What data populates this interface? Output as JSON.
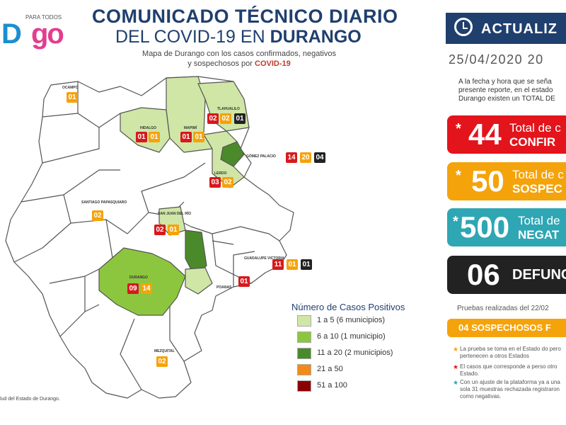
{
  "header": {
    "logo_small": "PARA TODOS",
    "logo_d": "D",
    "logo_go": "go",
    "title_line1": "COMUNICADO TÉCNICO DIARIO",
    "title_line2_pre": "DEL COVID-19 EN ",
    "title_line2_bold": "DURANGO",
    "subtitle_line1": "Mapa de Durango con los casos confirmados, negativos",
    "subtitle_line2_pre": "y sospechosos por ",
    "subtitle_line2_bold": "COVID-19"
  },
  "map": {
    "municipios": [
      {
        "name": "OCAMPO",
        "badges": [
          {
            "value": "01",
            "type": "suspected"
          }
        ]
      },
      {
        "name": "HIDALGO",
        "badges": [
          {
            "value": "01",
            "type": "confirmed"
          },
          {
            "value": "01",
            "type": "suspected"
          }
        ]
      },
      {
        "name": "MAPIMÍ",
        "badges": [
          {
            "value": "01",
            "type": "confirmed"
          },
          {
            "value": "01",
            "type": "suspected"
          }
        ]
      },
      {
        "name": "TLAHUALILO",
        "badges": [
          {
            "value": "02",
            "type": "confirmed"
          },
          {
            "value": "02",
            "type": "suspected"
          },
          {
            "value": "01",
            "type": "negative"
          }
        ]
      },
      {
        "name": "GÓMEZ PALACIO",
        "badges": [
          {
            "value": "14",
            "type": "confirmed"
          },
          {
            "value": "20",
            "type": "suspected"
          },
          {
            "value": "04",
            "type": "negative"
          }
        ]
      },
      {
        "name": "LERDO",
        "badges": [
          {
            "value": "03",
            "type": "confirmed"
          },
          {
            "value": "02",
            "type": "suspected"
          }
        ]
      },
      {
        "name": "SANTIAGO PAPASQUIARO",
        "badges": [
          {
            "value": "02",
            "type": "suspected"
          }
        ]
      },
      {
        "name": "SAN JUAN DEL RÍO",
        "badges": [
          {
            "value": "02",
            "type": "confirmed"
          },
          {
            "value": "01",
            "type": "suspected"
          }
        ]
      },
      {
        "name": "GUADALUPE VICTORIA",
        "badges": [
          {
            "value": "11",
            "type": "confirmed"
          },
          {
            "value": "01",
            "type": "suspected"
          },
          {
            "value": "01",
            "type": "negative"
          }
        ]
      },
      {
        "name": "POANAS",
        "badges": [
          {
            "value": "01",
            "type": "confirmed"
          }
        ]
      },
      {
        "name": "DURANGO",
        "badges": [
          {
            "value": "09",
            "type": "confirmed"
          },
          {
            "value": "14",
            "type": "suspected"
          }
        ]
      },
      {
        "name": "MEZQUITAL",
        "badges": [
          {
            "value": "02",
            "type": "suspected"
          }
        ]
      }
    ],
    "colors": {
      "light": "#cfe6a6",
      "medium": "#8cc63f",
      "dark": "#4b8a2b",
      "outline": "#555555",
      "white": "#ffffff"
    }
  },
  "legend": {
    "title": "Número de Casos Positivos",
    "items": [
      {
        "label": "1 a 5   (6 municipios)",
        "color": "#cfe6a6"
      },
      {
        "label": "6 a 10   (1 municipio)",
        "color": "#8cc63f"
      },
      {
        "label": "11 a 20   (2 municipios)",
        "color": "#4b8a2b"
      },
      {
        "label": "21 a 50",
        "color": "#f28a1a"
      },
      {
        "label": "51 a 100",
        "color": "#8b0000"
      }
    ]
  },
  "source": "lud del Estado de Durango.",
  "panel": {
    "update_label": "ACTUALIZ",
    "date": "25/04/2020  20",
    "intro": "A la fecha y hora que se seña presente reporte, en el estado Durango existen un TOTAL DE",
    "cards": [
      {
        "asterisk": "*",
        "number": "44",
        "line1": "Total de c",
        "line2": "CONFIR",
        "color": "#e3141b"
      },
      {
        "asterisk": "*",
        "number": "50",
        "line1": "Total de c",
        "line2": "SOSPEC",
        "color": "#f5a30b"
      },
      {
        "asterisk": "*",
        "number": "500",
        "line1": "Total de",
        "line2": "NEGAT",
        "color": "#2fa6b3"
      },
      {
        "asterisk": "",
        "number": "06",
        "line1": "",
        "line2": "DEFUNC",
        "color": "#222222"
      }
    ],
    "pruebas": "Pruebas realizadas del 22/02",
    "sospechosos_bar": "04 SOSPECHOSOS F",
    "notes": [
      {
        "star_color": "#f5a30b",
        "text": "La prueba se toma en el Estado do pero pertenecen a otros Estados"
      },
      {
        "star_color": "#d7191c",
        "text": "El casos que corresponde a perso otro Estado."
      },
      {
        "star_color": "#2fa6b3",
        "text": "Con un ajuste de la plataforma ya a una sola 31 muestras rechazada registraron como negativas."
      }
    ]
  }
}
